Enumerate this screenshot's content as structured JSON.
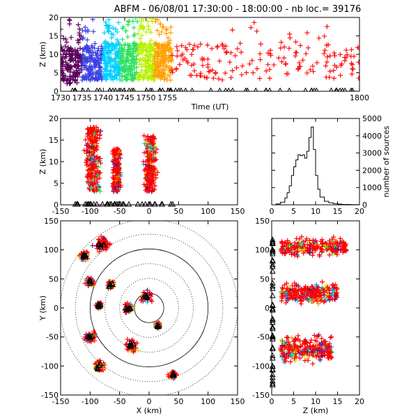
{
  "title": "ABFM - 06/08/01 17:30:00 - 18:00:00 - nb loc.= 39176",
  "chart_data": [
    {
      "id": "time_height",
      "type": "scatter",
      "xlabel": "Time (UT)",
      "ylabel": "Z (km)",
      "xlim": [
        1730,
        1800
      ],
      "ylim": [
        0,
        20
      ],
      "xticks": [
        1730,
        1735,
        1740,
        1745,
        1750,
        1755,
        1800
      ],
      "yticks": [
        0,
        5,
        10,
        15,
        20
      ],
      "series": [
        {
          "x_range": [
            1730,
            1735
          ],
          "z_range": [
            2,
            12
          ],
          "color": "#5a005a"
        },
        {
          "x_range": [
            1735,
            1740
          ],
          "z_range": [
            3,
            12
          ],
          "color": "#3a40e0"
        },
        {
          "x_range": [
            1740,
            1744
          ],
          "z_range": [
            3,
            13
          ],
          "color": "#00d0ff"
        },
        {
          "x_range": [
            1744,
            1748
          ],
          "z_range": [
            3,
            13
          ],
          "color": "#30e060"
        },
        {
          "x_range": [
            1748,
            1752
          ],
          "z_range": [
            3,
            13
          ],
          "color": "#b8f000"
        },
        {
          "x_range": [
            1752,
            1756
          ],
          "z_range": [
            3,
            13
          ],
          "color": "#ffa000"
        },
        {
          "x_range": [
            1756,
            1800
          ],
          "z_range": [
            3,
            13
          ],
          "color": "#ff1010"
        }
      ],
      "ground_markers": "triangles along Z = 0"
    },
    {
      "id": "x_height",
      "type": "scatter",
      "xlabel": "",
      "ylabel": "Z (km)",
      "xlim": [
        -150,
        150
      ],
      "ylim": [
        0,
        20
      ],
      "xticks": [
        -150,
        -100,
        -50,
        0,
        50,
        100,
        150
      ],
      "yticks": [
        0,
        5,
        10,
        15,
        20
      ],
      "clusters": [
        {
          "x_center": -95,
          "x_width": 30,
          "z_range": [
            3,
            18
          ]
        },
        {
          "x_center": -55,
          "x_width": 14,
          "z_range": [
            3,
            13
          ]
        },
        {
          "x_center": 2,
          "x_width": 24,
          "z_range": [
            3,
            16
          ]
        }
      ]
    },
    {
      "id": "histogram",
      "type": "line",
      "xlabel": "",
      "ylabel": "number of sources",
      "xlim": [
        0,
        20
      ],
      "ylim": [
        0,
        5000
      ],
      "xticks": [
        0,
        5,
        10,
        15,
        20
      ],
      "yticks": [
        0,
        1000,
        2000,
        3000,
        4000,
        5000
      ],
      "x": [
        0,
        1,
        2,
        3,
        3.5,
        4,
        4.5,
        5,
        5.5,
        6,
        6.5,
        7,
        7.5,
        8,
        8.5,
        9,
        9.5,
        10,
        10.5,
        11,
        12,
        13,
        14,
        15,
        16,
        18,
        20
      ],
      "values": [
        0,
        50,
        150,
        400,
        700,
        1100,
        1700,
        2200,
        2600,
        2900,
        2850,
        2900,
        2700,
        3100,
        3900,
        4500,
        3200,
        1700,
        900,
        450,
        200,
        120,
        70,
        40,
        20,
        10,
        0
      ]
    },
    {
      "id": "plan_view",
      "type": "scatter",
      "xlabel": "X (km)",
      "ylabel": "Y (km)",
      "xlim": [
        -150,
        150
      ],
      "ylim": [
        -150,
        150
      ],
      "xticks": [
        -150,
        -100,
        -50,
        0,
        50,
        100,
        150
      ],
      "yticks": [
        -150,
        -100,
        -50,
        0,
        50,
        100,
        150
      ],
      "range_rings_km": [
        25,
        50,
        75,
        100,
        125,
        150
      ],
      "solid_rings_km": [
        25,
        100
      ],
      "clusters": [
        {
          "x": -80,
          "y": 110,
          "r": 25
        },
        {
          "x": -110,
          "y": 90,
          "r": 15
        },
        {
          "x": -100,
          "y": 45,
          "r": 14
        },
        {
          "x": -65,
          "y": 40,
          "r": 12
        },
        {
          "x": -85,
          "y": 5,
          "r": 10
        },
        {
          "x": -35,
          "y": 0,
          "r": 15
        },
        {
          "x": -5,
          "y": 20,
          "r": 20
        },
        {
          "x": 15,
          "y": -30,
          "r": 10
        },
        {
          "x": -100,
          "y": -50,
          "r": 18
        },
        {
          "x": -30,
          "y": -65,
          "r": 18
        },
        {
          "x": -85,
          "y": -100,
          "r": 18
        },
        {
          "x": 40,
          "y": -115,
          "r": 12
        }
      ]
    },
    {
      "id": "height_y",
      "type": "scatter",
      "xlabel": "Z (km)",
      "ylabel": "",
      "xlim": [
        0,
        20
      ],
      "ylim": [
        -150,
        150
      ],
      "xticks": [
        0,
        5,
        10,
        15,
        20
      ],
      "yticks": [
        -150,
        -100,
        -50,
        0,
        50,
        100,
        150
      ],
      "clusters": [
        {
          "y_center": 105,
          "y_width": 40,
          "z_range": [
            2,
            17
          ]
        },
        {
          "y_center": 25,
          "y_width": 45,
          "z_range": [
            2,
            15
          ]
        },
        {
          "y_center": -70,
          "y_width": 60,
          "z_range": [
            2,
            14
          ]
        }
      ]
    }
  ]
}
